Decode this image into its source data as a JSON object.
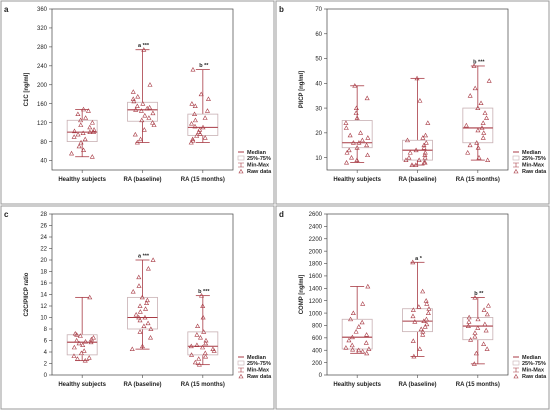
{
  "chart_data": [
    {
      "type": "box",
      "panel_label": "a",
      "ylabel": "C1C [ng/ml]",
      "ylim": [
        20,
        360
      ],
      "yticks": [
        40,
        80,
        120,
        160,
        200,
        240,
        280,
        320,
        360
      ],
      "categories": [
        "Healthy subjects",
        "RA (baseline)",
        "RA (15 months)"
      ],
      "boxes": [
        {
          "min": 48,
          "q1": 80,
          "median": 100,
          "q3": 125,
          "max": 148,
          "annotation": ""
        },
        {
          "min": 78,
          "q1": 123,
          "median": 147,
          "q3": 163,
          "max": 274,
          "annotation": "a ***"
        },
        {
          "min": 78,
          "q1": 93,
          "median": 110,
          "q3": 138,
          "max": 232,
          "annotation": "b **"
        }
      ],
      "raw_data": [
        [
          48,
          55,
          62,
          70,
          78,
          85,
          90,
          95,
          98,
          100,
          100,
          102,
          105,
          110,
          115,
          120,
          125,
          130,
          138,
          145,
          148
        ],
        [
          78,
          85,
          95,
          105,
          115,
          120,
          125,
          130,
          135,
          140,
          145,
          147,
          150,
          152,
          155,
          160,
          165,
          170,
          175,
          185,
          200,
          274
        ],
        [
          78,
          82,
          85,
          88,
          92,
          96,
          100,
          105,
          110,
          112,
          118,
          125,
          130,
          138,
          145,
          155,
          160,
          170,
          180,
          232
        ]
      ],
      "legend": [
        "Median",
        "25%-75%",
        "Min-Max",
        "Raw data"
      ]
    },
    {
      "type": "box",
      "panel_label": "b",
      "ylabel": "PIICP [ng/ml]",
      "ylim": [
        5,
        70
      ],
      "yticks": [
        10,
        20,
        30,
        40,
        50,
        60,
        70
      ],
      "categories": [
        "Healthy subjects",
        "RA (baseline)",
        "RA (15 months)"
      ],
      "boxes": [
        {
          "min": 8,
          "q1": 14,
          "median": 16,
          "q3": 25,
          "max": 39,
          "annotation": ""
        },
        {
          "min": 7,
          "q1": 9,
          "median": 13,
          "q3": 17,
          "max": 42,
          "annotation": ""
        },
        {
          "min": 9,
          "q1": 16,
          "median": 22,
          "q3": 30,
          "max": 47,
          "annotation": "b ***"
        }
      ],
      "raw_data": [
        [
          8,
          9,
          10,
          11,
          12,
          13,
          14,
          15,
          16,
          16,
          17,
          18,
          19,
          20,
          22,
          24,
          26,
          28,
          30,
          34,
          39
        ],
        [
          7,
          7,
          8,
          8,
          9,
          9,
          10,
          10,
          11,
          12,
          12,
          13,
          14,
          15,
          16,
          17,
          18,
          19,
          24,
          33,
          42
        ],
        [
          9,
          10,
          12,
          14,
          15,
          16,
          18,
          20,
          21,
          22,
          23,
          24,
          26,
          28,
          30,
          32,
          35,
          38,
          41,
          47
        ]
      ],
      "legend": [
        "Median",
        "25%-75%",
        "Min-Max",
        "Raw data"
      ]
    },
    {
      "type": "box",
      "panel_label": "c",
      "ylabel": "C2C/PIICP ratio",
      "ylim": [
        0,
        28
      ],
      "yticks": [
        0,
        2,
        4,
        6,
        8,
        10,
        12,
        14,
        16,
        18,
        20,
        22,
        24,
        26,
        28
      ],
      "categories": [
        "Healthy subjects",
        "RA (baseline)",
        "RA (15 months)"
      ],
      "boxes": [
        {
          "min": 2.5,
          "q1": 3.5,
          "median": 5.7,
          "q3": 7.0,
          "max": 13.5,
          "annotation": ""
        },
        {
          "min": 4.5,
          "q1": 8.0,
          "median": 10.0,
          "q3": 13.5,
          "max": 20.0,
          "annotation": "a ***"
        },
        {
          "min": 1.8,
          "q1": 3.5,
          "median": 5.0,
          "q3": 7.5,
          "max": 13.8,
          "annotation": "b ***"
        }
      ],
      "raw_data": [
        [
          2.5,
          2.8,
          3.0,
          3.3,
          3.8,
          4.2,
          4.8,
          5.2,
          5.5,
          5.7,
          5.8,
          6.0,
          6.2,
          6.5,
          6.8,
          7.0,
          7.2,
          13.5
        ],
        [
          4.5,
          5.0,
          6.5,
          7.5,
          8.0,
          8.5,
          9.0,
          9.5,
          10.0,
          10.0,
          10.5,
          11.0,
          11.5,
          12.0,
          12.5,
          13.0,
          13.5,
          14.5,
          15.5,
          17.0,
          18.5,
          20.0
        ],
        [
          1.8,
          2.2,
          2.8,
          3.2,
          3.5,
          3.8,
          4.2,
          4.5,
          4.8,
          5.0,
          5.2,
          5.5,
          6.0,
          6.5,
          7.0,
          7.5,
          8.5,
          10.0,
          12.0,
          13.8
        ]
      ],
      "legend": [
        "Median",
        "25%-75%",
        "Min-Max",
        "Raw data"
      ]
    },
    {
      "type": "box",
      "panel_label": "d",
      "ylabel": "COMP [ng/ml]",
      "ylim": [
        0,
        2600
      ],
      "yticks": [
        0,
        200,
        400,
        600,
        800,
        1000,
        1200,
        1400,
        1600,
        1800,
        2000,
        2200,
        2400,
        2600
      ],
      "categories": [
        "Healthy subjects",
        "RA (baseline)",
        "RA (15 months)"
      ],
      "boxes": [
        {
          "min": 350,
          "q1": 420,
          "median": 610,
          "q3": 900,
          "max": 1430,
          "annotation": ""
        },
        {
          "min": 300,
          "q1": 700,
          "median": 870,
          "q3": 1070,
          "max": 1820,
          "annotation": "a *"
        },
        {
          "min": 180,
          "q1": 570,
          "median": 790,
          "q3": 930,
          "max": 1250,
          "annotation": "b **"
        }
      ],
      "raw_data": [
        [
          350,
          380,
          400,
          410,
          420,
          440,
          480,
          520,
          560,
          610,
          650,
          700,
          780,
          850,
          900,
          1000,
          1150,
          1430
        ],
        [
          300,
          420,
          550,
          650,
          700,
          740,
          780,
          820,
          860,
          870,
          900,
          950,
          1000,
          1050,
          1070,
          1100,
          1150,
          1200,
          1350,
          1820
        ],
        [
          180,
          350,
          420,
          500,
          570,
          620,
          680,
          720,
          760,
          790,
          820,
          860,
          900,
          930,
          980,
          1050,
          1120,
          1250
        ]
      ],
      "legend": [
        "Median",
        "25%-75%",
        "Min-Max",
        "Raw data"
      ]
    }
  ]
}
